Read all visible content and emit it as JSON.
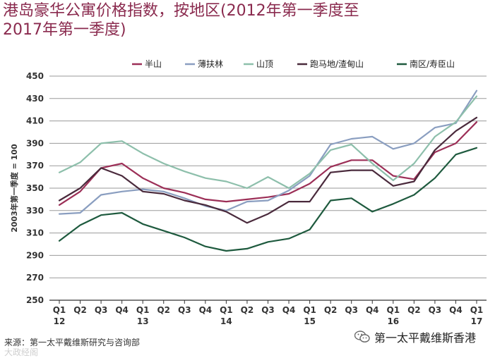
{
  "title_lines": [
    "港岛豪华公寓价格指数，按地区(2012年第一季度至",
    "2017年第一季度)"
  ],
  "source": "来源：第一太平戴维斯研究与咨询部",
  "watermark_left": "大政经阁",
  "watermark_right": "第一太平戴维斯香港",
  "colors": {
    "title": "#8a2a4e",
    "grid": "#9a9a9a",
    "axis": "#333333"
  },
  "chart_data": {
    "type": "line",
    "title": "港岛豪华公寓价格指数，按地区(2012年第一季度至2017年第一季度)",
    "ylabel": "2003年第一季度 = 100",
    "xlabel": "",
    "ylim": [
      250,
      450
    ],
    "yticks": [
      250,
      270,
      290,
      310,
      330,
      350,
      370,
      390,
      410,
      430,
      450
    ],
    "grid": true,
    "legend_position": "top",
    "categories": [
      "Q1",
      "Q2",
      "Q3",
      "Q4",
      "Q1",
      "Q2",
      "Q3",
      "Q4",
      "Q1",
      "Q2",
      "Q3",
      "Q4",
      "Q1",
      "Q2",
      "Q3",
      "Q4",
      "Q1",
      "Q2",
      "Q3",
      "Q4",
      "Q1"
    ],
    "year_labels": [
      "12",
      "",
      "",
      "",
      "13",
      "",
      "",
      "",
      "14",
      "",
      "",
      "",
      "15",
      "",
      "",
      "",
      "16",
      "",
      "",
      "",
      "17"
    ],
    "series": [
      {
        "name": "半山",
        "color": "#9c2f57",
        "values": [
          335,
          347,
          368,
          372,
          359,
          350,
          346,
          340,
          338,
          340,
          342,
          345,
          354,
          369,
          375,
          375,
          361,
          358,
          382,
          390,
          409
        ]
      },
      {
        "name": "薄扶林",
        "color": "#8a9ec0",
        "values": [
          327,
          328,
          344,
          347,
          349,
          347,
          341,
          334,
          330,
          338,
          339,
          348,
          361,
          389,
          394,
          396,
          385,
          390,
          404,
          408,
          437
        ]
      },
      {
        "name": "山顶",
        "color": "#8dbfab",
        "values": [
          364,
          373,
          390,
          392,
          381,
          372,
          365,
          359,
          356,
          350,
          360,
          350,
          363,
          384,
          389,
          372,
          357,
          372,
          396,
          409,
          432
        ]
      },
      {
        "name": "跑马地/渣甸山",
        "color": "#4a2a3c",
        "values": [
          339,
          350,
          368,
          361,
          347,
          345,
          339,
          335,
          329,
          319,
          327,
          338,
          338,
          364,
          366,
          366,
          352,
          356,
          384,
          401,
          413
        ]
      },
      {
        "name": "南区/寿臣山",
        "color": "#1e5a3e",
        "values": [
          303,
          317,
          326,
          328,
          318,
          312,
          306,
          298,
          294,
          296,
          302,
          305,
          313,
          339,
          341,
          329,
          336,
          344,
          359,
          380,
          386
        ]
      }
    ]
  }
}
